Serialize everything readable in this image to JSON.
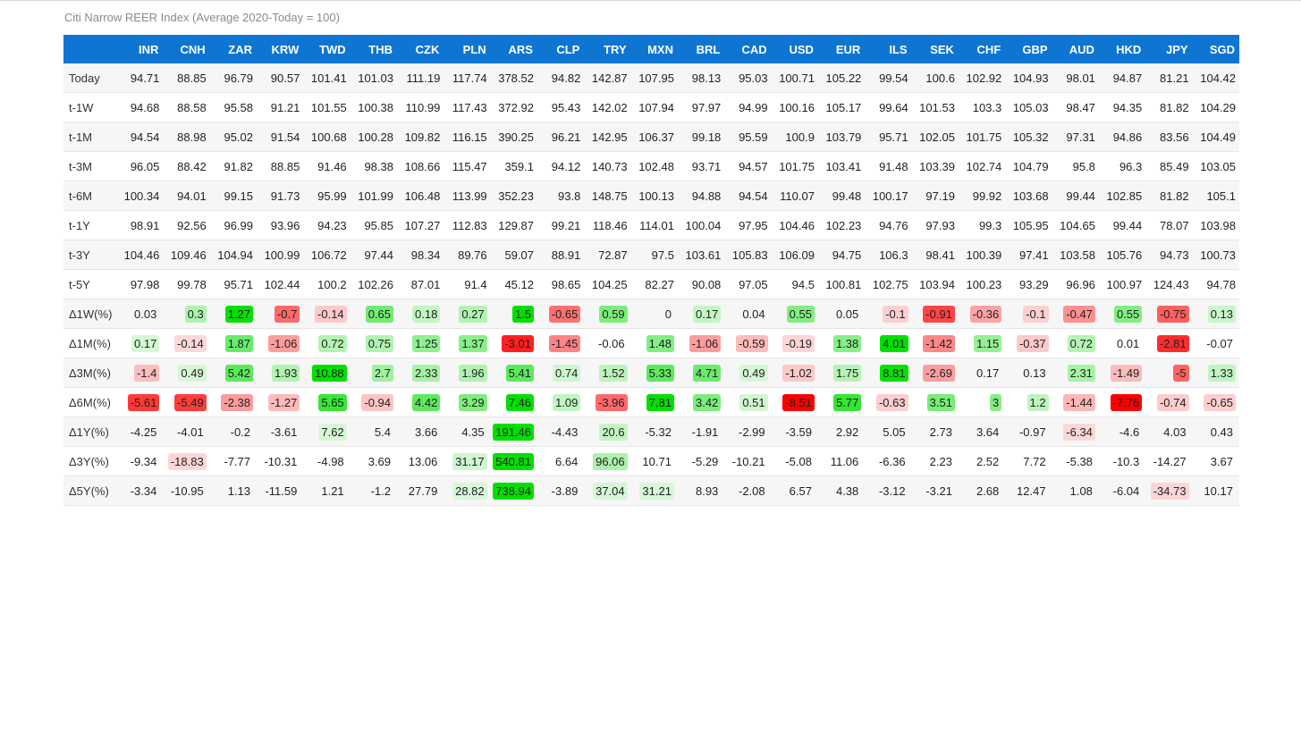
{
  "title": "Citi Narrow REER Index (Average 2020-Today = 100)",
  "currencies": [
    "INR",
    "CNH",
    "ZAR",
    "KRW",
    "TWD",
    "THB",
    "CZK",
    "PLN",
    "ARS",
    "CLP",
    "TRY",
    "MXN",
    "BRL",
    "CAD",
    "USD",
    "EUR",
    "ILS",
    "SEK",
    "CHF",
    "GBP",
    "AUD",
    "HKD",
    "JPY",
    "SGD"
  ],
  "rows": [
    {
      "label": "Today",
      "type": "level",
      "values": [
        "94.71",
        "88.85",
        "96.79",
        "90.57",
        "101.41",
        "101.03",
        "111.19",
        "117.74",
        "378.52",
        "94.82",
        "142.87",
        "107.95",
        "98.13",
        "95.03",
        "100.71",
        "105.22",
        "99.54",
        "100.6",
        "102.92",
        "104.93",
        "98.01",
        "94.87",
        "81.21",
        "104.42"
      ]
    },
    {
      "label": "t-1W",
      "type": "level",
      "values": [
        "94.68",
        "88.58",
        "95.58",
        "91.21",
        "101.55",
        "100.38",
        "110.99",
        "117.43",
        "372.92",
        "95.43",
        "142.02",
        "107.94",
        "97.97",
        "94.99",
        "100.16",
        "105.17",
        "99.64",
        "101.53",
        "103.3",
        "105.03",
        "98.47",
        "94.35",
        "81.82",
        "104.29"
      ]
    },
    {
      "label": "t-1M",
      "type": "level",
      "values": [
        "94.54",
        "88.98",
        "95.02",
        "91.54",
        "100.68",
        "100.28",
        "109.82",
        "116.15",
        "390.25",
        "96.21",
        "142.95",
        "106.37",
        "99.18",
        "95.59",
        "100.9",
        "103.79",
        "95.71",
        "102.05",
        "101.75",
        "105.32",
        "97.31",
        "94.86",
        "83.56",
        "104.49"
      ]
    },
    {
      "label": "t-3M",
      "type": "level",
      "values": [
        "96.05",
        "88.42",
        "91.82",
        "88.85",
        "91.46",
        "98.38",
        "108.66",
        "115.47",
        "359.1",
        "94.12",
        "140.73",
        "102.48",
        "93.71",
        "94.57",
        "101.75",
        "103.41",
        "91.48",
        "103.39",
        "102.74",
        "104.79",
        "95.8",
        "96.3",
        "85.49",
        "103.05"
      ]
    },
    {
      "label": "t-6M",
      "type": "level",
      "values": [
        "100.34",
        "94.01",
        "99.15",
        "91.73",
        "95.99",
        "101.99",
        "106.48",
        "113.99",
        "352.23",
        "93.8",
        "148.75",
        "100.13",
        "94.88",
        "94.54",
        "110.07",
        "99.48",
        "100.17",
        "97.19",
        "99.92",
        "103.68",
        "99.44",
        "102.85",
        "81.82",
        "105.1"
      ]
    },
    {
      "label": "t-1Y",
      "type": "level",
      "values": [
        "98.91",
        "92.56",
        "96.99",
        "93.96",
        "94.23",
        "95.85",
        "107.27",
        "112.83",
        "129.87",
        "99.21",
        "118.46",
        "114.01",
        "100.04",
        "97.95",
        "104.46",
        "102.23",
        "94.76",
        "97.93",
        "99.3",
        "105.95",
        "104.65",
        "99.44",
        "78.07",
        "103.98"
      ]
    },
    {
      "label": "t-3Y",
      "type": "level",
      "values": [
        "104.46",
        "109.46",
        "104.94",
        "100.99",
        "106.72",
        "97.44",
        "98.34",
        "89.76",
        "59.07",
        "88.91",
        "72.87",
        "97.5",
        "103.61",
        "105.83",
        "106.09",
        "94.75",
        "106.3",
        "98.41",
        "100.39",
        "97.41",
        "103.58",
        "105.76",
        "94.73",
        "100.73"
      ]
    },
    {
      "label": "t-5Y",
      "type": "level",
      "values": [
        "97.98",
        "99.78",
        "95.71",
        "102.44",
        "100.2",
        "102.26",
        "87.01",
        "91.4",
        "45.12",
        "98.65",
        "104.25",
        "82.27",
        "90.08",
        "97.05",
        "94.5",
        "100.81",
        "102.75",
        "103.94",
        "100.23",
        "93.29",
        "96.96",
        "100.97",
        "124.43",
        "94.78"
      ]
    },
    {
      "label": "Δ1W(%)",
      "type": "change",
      "scale": 1.3,
      "values": [
        "0.03",
        "0.3",
        "1.27",
        "-0.7",
        "-0.14",
        "0.65",
        "0.18",
        "0.27",
        "1.5",
        "-0.65",
        "0.59",
        "0",
        "0.17",
        "0.04",
        "0.55",
        "0.05",
        "-0.1",
        "-0.91",
        "-0.36",
        "-0.1",
        "-0.47",
        "0.55",
        "-0.75",
        "0.13"
      ]
    },
    {
      "label": "Δ1M(%)",
      "type": "change",
      "scale": 3.5,
      "values": [
        "0.17",
        "-0.14",
        "1.87",
        "-1.06",
        "0.72",
        "0.75",
        "1.25",
        "1.37",
        "-3.01",
        "-1.45",
        "-0.06",
        "1.48",
        "-1.06",
        "-0.59",
        "-0.19",
        "1.38",
        "4.01",
        "-1.42",
        "1.15",
        "-0.37",
        "0.72",
        "0.01",
        "-2.81",
        "-0.07"
      ]
    },
    {
      "label": "Δ3M(%)",
      "type": "change",
      "scale": 9,
      "values": [
        "-1.4",
        "0.49",
        "5.42",
        "1.93",
        "10.88",
        "2.7",
        "2.33",
        "1.96",
        "5.41",
        "0.74",
        "1.52",
        "5.33",
        "4.71",
        "0.49",
        "-1.02",
        "1.75",
        "8.81",
        "-2.69",
        "0.17",
        "0.13",
        "2.31",
        "-1.49",
        "-5",
        "1.33"
      ]
    },
    {
      "label": "Δ6M(%)",
      "type": "change",
      "scale": 7.5,
      "values": [
        "-5.61",
        "-5.49",
        "-2.38",
        "-1.27",
        "5.65",
        "-0.94",
        "4.42",
        "3.29",
        "7.46",
        "1.09",
        "-3.96",
        "7.81",
        "3.42",
        "0.51",
        "-8.51",
        "5.77",
        "-0.63",
        "3.51",
        "3",
        "1.2",
        "-1.44",
        "-7.76",
        "-0.74",
        "-0.65"
      ]
    },
    {
      "label": "Δ1Y(%)",
      "type": "change",
      "scale": 150,
      "values": [
        "-4.25",
        "-4.01",
        "-0.2",
        "-3.61",
        "7.62",
        "5.4",
        "3.66",
        "4.35",
        "191.46",
        "-4.43",
        "20.6",
        "-5.32",
        "-1.91",
        "-2.99",
        "-3.59",
        "2.92",
        "5.05",
        "2.73",
        "3.64",
        "-0.97",
        "-6.34",
        "-4.6",
        "4.03",
        "0.43"
      ]
    },
    {
      "label": "Δ3Y(%)",
      "type": "change",
      "scale": 400,
      "values": [
        "-9.34",
        "-18.83",
        "-7.77",
        "-10.31",
        "-4.98",
        "3.69",
        "13.06",
        "31.17",
        "540.81",
        "6.64",
        "96.06",
        "10.71",
        "-5.29",
        "-10.21",
        "-5.08",
        "11.06",
        "-6.36",
        "2.23",
        "2.52",
        "7.72",
        "-5.38",
        "-10.3",
        "-14.27",
        "3.67"
      ]
    },
    {
      "label": "Δ5Y(%)",
      "type": "change",
      "scale": 700,
      "values": [
        "-3.34",
        "-10.95",
        "1.13",
        "-11.59",
        "1.21",
        "-1.2",
        "27.79",
        "28.82",
        "738.94",
        "-3.89",
        "37.04",
        "31.21",
        "8.93",
        "-2.08",
        "6.57",
        "4.38",
        "-3.12",
        "-3.21",
        "2.68",
        "12.47",
        "1.08",
        "-6.04",
        "-34.73",
        "10.17"
      ]
    }
  ],
  "colors": {
    "header_bg": "#0f75d2",
    "positive_strong": "#00e000",
    "negative_strong": "#ff0000"
  }
}
